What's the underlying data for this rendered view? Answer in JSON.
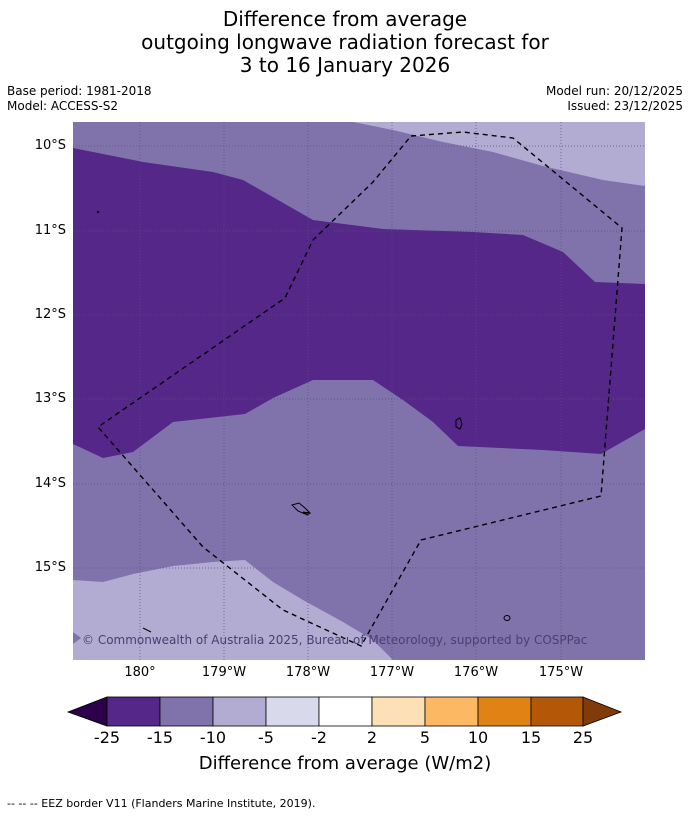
{
  "title": {
    "line1": "Difference from average",
    "line2": "outgoing longwave radiation forecast for",
    "line3": "3 to 16 January 2026"
  },
  "meta": {
    "base_period": "Base period: 1981-2018",
    "model": "Model: ACCESS-S2",
    "model_run": "Model run: 20/12/2025",
    "issued": "Issued: 23/12/2025"
  },
  "map": {
    "lat_labels": [
      "10°S",
      "11°S",
      "12°S",
      "13°S",
      "14°S",
      "15°S"
    ],
    "lon_labels": [
      "180°",
      "179°W",
      "178°W",
      "177°W",
      "176°W",
      "175°W"
    ],
    "copyright": "© Commonwealth of Australia 2025, Bureau of Meteorology, supported by COSPPac",
    "colors": {
      "band_-25_-15": "#542788",
      "band_-15_-10": "#8073ac",
      "band_-10_-5": "#b2abd2",
      "grid": "#5a4d80"
    }
  },
  "colorbar": {
    "title": "Difference from average (W/m2)",
    "ticks": [
      "-25",
      "-15",
      "-10",
      "-5",
      "-2",
      "2",
      "5",
      "10",
      "15",
      "25"
    ],
    "colors": [
      "#2d004b",
      "#542788",
      "#8073ac",
      "#b2abd2",
      "#d8daeb",
      "#ffffff",
      "#fee0b6",
      "#fdb863",
      "#e08214",
      "#b35806",
      "#7f3b08"
    ]
  },
  "footnote": "-- -- -- EEZ border V11 (Flanders Marine Institute, 2019)."
}
